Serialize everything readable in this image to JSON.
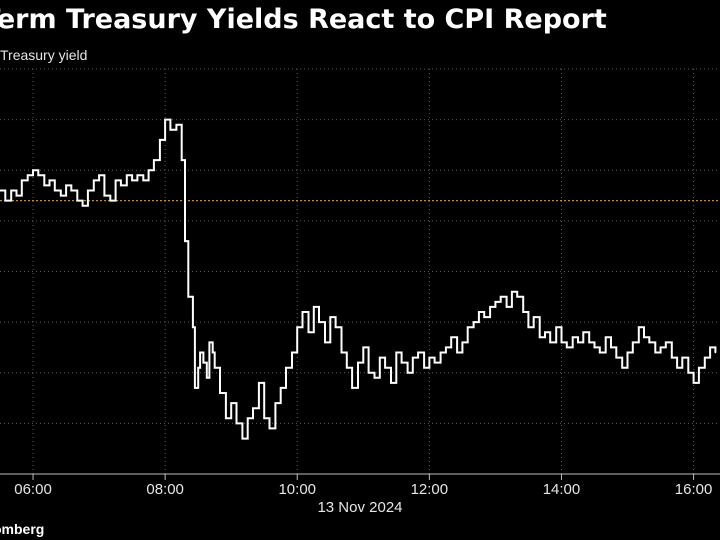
{
  "title": "Term Treasury Yields React to CPI Report",
  "subtitle": "Treasury yield",
  "source": "omberg",
  "colors": {
    "background": "#000000",
    "line": "#ffffff",
    "reference_line": "#c9892c",
    "grid": "#5a5a5a"
  },
  "chart_data": {
    "type": "line",
    "title": "Term Treasury Yields React to CPI Report",
    "subtitle": "Treasury yield",
    "xlabel": "13 Nov 2024",
    "x_ticks": [
      "06:00",
      "08:00",
      "10:00",
      "12:00",
      "14:00",
      "16:00"
    ],
    "x_tick_hours": [
      6,
      8,
      10,
      12,
      14,
      16
    ],
    "xlim": [
      5.5,
      16.4
    ],
    "y_grid": "8 horizontal dotted gridlines, y-axis tick labels not visible",
    "ylim": [
      0,
      8
    ],
    "reference_value": 5.4,
    "series": [
      {
        "values_note": "values in grid-step units (0 = bottom axis, 8 = top gridline); axis ticks unlabeled in image",
        "x": [
          5.5,
          5.58,
          5.67,
          5.75,
          5.83,
          5.92,
          6.0,
          6.08,
          6.17,
          6.25,
          6.33,
          6.42,
          6.5,
          6.58,
          6.67,
          6.75,
          6.83,
          6.92,
          7.0,
          7.08,
          7.17,
          7.25,
          7.33,
          7.42,
          7.5,
          7.58,
          7.67,
          7.75,
          7.83,
          7.92,
          8.0,
          8.08,
          8.17,
          8.25,
          8.3,
          8.35,
          8.42,
          8.45,
          8.5,
          8.53,
          8.58,
          8.63,
          8.67,
          8.72,
          8.75,
          8.83,
          8.92,
          9.0,
          9.08,
          9.17,
          9.25,
          9.33,
          9.42,
          9.5,
          9.58,
          9.67,
          9.75,
          9.83,
          9.92,
          10.0,
          10.08,
          10.17,
          10.25,
          10.33,
          10.42,
          10.5,
          10.58,
          10.67,
          10.75,
          10.83,
          10.92,
          11.0,
          11.08,
          11.17,
          11.25,
          11.33,
          11.42,
          11.5,
          11.58,
          11.67,
          11.75,
          11.83,
          11.92,
          12.0,
          12.08,
          12.17,
          12.25,
          12.33,
          12.42,
          12.5,
          12.58,
          12.67,
          12.75,
          12.83,
          12.92,
          13.0,
          13.08,
          13.17,
          13.25,
          13.33,
          13.42,
          13.5,
          13.58,
          13.67,
          13.75,
          13.83,
          13.92,
          14.0,
          14.08,
          14.17,
          14.25,
          14.33,
          14.42,
          14.5,
          14.58,
          14.67,
          14.75,
          14.83,
          14.92,
          15.0,
          15.08,
          15.17,
          15.25,
          15.33,
          15.42,
          15.5,
          15.58,
          15.67,
          15.75,
          15.83,
          15.92,
          16.0,
          16.08,
          16.17,
          16.25,
          16.33
        ],
        "values": [
          5.6,
          5.4,
          5.6,
          5.5,
          5.8,
          5.9,
          6.0,
          5.9,
          5.7,
          5.8,
          5.6,
          5.5,
          5.7,
          5.6,
          5.4,
          5.3,
          5.6,
          5.8,
          5.9,
          5.5,
          5.4,
          5.8,
          5.7,
          5.9,
          5.8,
          5.9,
          5.8,
          6.0,
          6.2,
          6.6,
          7.0,
          6.8,
          6.9,
          6.2,
          4.6,
          3.5,
          2.9,
          1.7,
          2.1,
          2.4,
          2.2,
          1.9,
          2.6,
          2.4,
          2.1,
          1.6,
          1.1,
          1.4,
          1.0,
          0.7,
          1.1,
          1.3,
          1.8,
          1.1,
          0.9,
          1.4,
          1.7,
          2.1,
          2.4,
          2.9,
          3.2,
          2.8,
          3.3,
          3.0,
          2.6,
          3.1,
          2.9,
          2.4,
          2.1,
          1.7,
          2.2,
          2.5,
          2.0,
          1.9,
          2.3,
          2.1,
          1.8,
          2.4,
          2.2,
          2.0,
          2.3,
          2.4,
          2.1,
          2.3,
          2.2,
          2.4,
          2.5,
          2.7,
          2.4,
          2.6,
          2.9,
          3.0,
          3.2,
          3.1,
          3.3,
          3.4,
          3.5,
          3.3,
          3.6,
          3.5,
          3.2,
          2.9,
          3.1,
          2.7,
          2.8,
          2.6,
          2.9,
          2.6,
          2.5,
          2.7,
          2.6,
          2.8,
          2.6,
          2.5,
          2.4,
          2.7,
          2.5,
          2.3,
          2.1,
          2.4,
          2.6,
          2.9,
          2.7,
          2.6,
          2.4,
          2.5,
          2.6,
          2.3,
          2.1,
          2.3,
          2.0,
          1.8,
          2.1,
          2.3,
          2.5,
          2.4
        ]
      }
    ]
  }
}
